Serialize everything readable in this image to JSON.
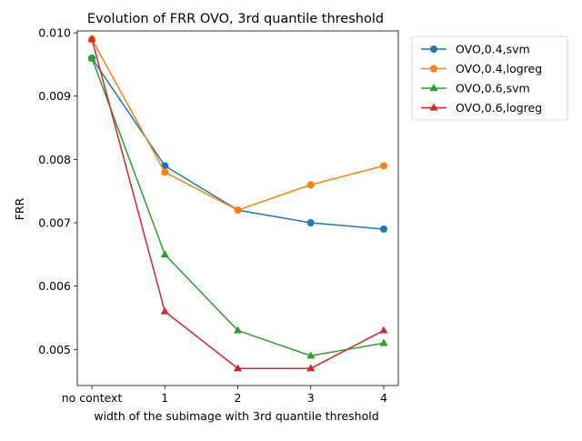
{
  "chart_data": {
    "type": "line",
    "title": "Evolution of FRR OVO, 3rd quantile threshold",
    "xlabel": "width of the subimage with 3rd quantile threshold",
    "ylabel": "FRR",
    "categories": [
      "no context",
      "1",
      "2",
      "3",
      "4"
    ],
    "x": [
      0,
      1,
      2,
      3,
      4
    ],
    "xlim": [
      -0.2,
      4.2
    ],
    "ylim": [
      0.00443,
      0.01003
    ],
    "yticks": [
      0.005,
      0.006,
      0.007,
      0.008,
      0.009,
      0.01
    ],
    "ytick_labels": [
      "0.005",
      "0.006",
      "0.007",
      "0.008",
      "0.009",
      "0.010"
    ],
    "grid": false,
    "legend_placement": "outside upper right",
    "series": [
      {
        "name": "OVO,0.4,svm",
        "color": "#1f77b4",
        "marker": "circle",
        "values": [
          0.0096,
          0.0079,
          0.0072,
          0.007,
          0.0069
        ]
      },
      {
        "name": "OVO,0.4,logreg",
        "color": "#ff7f0e",
        "marker": "circle",
        "values": [
          0.0099,
          0.0078,
          0.0072,
          0.0076,
          0.0079
        ]
      },
      {
        "name": "OVO,0.6,svm",
        "color": "#2ca02c",
        "marker": "triangle",
        "values": [
          0.0096,
          0.0065,
          0.0053,
          0.0049,
          0.0051
        ]
      },
      {
        "name": "OVO,0.6,logreg",
        "color": "#d62728",
        "marker": "triangle",
        "values": [
          0.0099,
          0.0056,
          0.0047,
          0.0047,
          0.0053
        ]
      }
    ]
  }
}
